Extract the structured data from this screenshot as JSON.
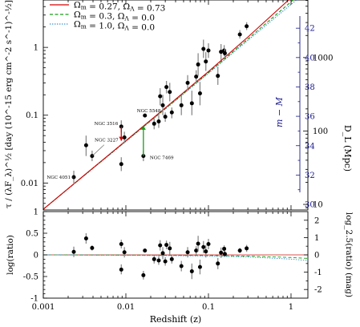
{
  "chart_data": [
    {
      "panel": "upper",
      "type": "scatter",
      "x_axis": {
        "scale": "log",
        "range": [
          0.001,
          1.6
        ],
        "tick_labels": [],
        "label": ""
      },
      "y_axis": {
        "scale": "log",
        "range": [
          0.004,
          5.0
        ],
        "label": "τ / (λF_λ)^½  [day  (10^-15 erg cm^-2 s^-1)^-½]",
        "tick_labels": [
          "0.01",
          "0.1",
          "1"
        ]
      },
      "right_axis_m_minus_M": {
        "label": "m − M",
        "color": "#1a1a8c",
        "range": [
          29.62,
          43.92
        ],
        "tick_labels": [
          "30",
          "32",
          "34",
          "36",
          "38",
          "40",
          "42"
        ]
      },
      "right_axis_DL": {
        "label": "D_L (Mpc)",
        "tick_labels": [
          "10",
          "100",
          "1000"
        ],
        "tick_values": [
          10,
          100,
          1000
        ]
      },
      "legend": {
        "position": "top-left",
        "entries": [
          {
            "label_main": "Ω",
            "label_sub1": "m",
            "label_mid": " = 0.27, Ω",
            "label_sub2": "Λ",
            "label_end": " = 0.73",
            "color": "#d40000",
            "dash": "solid"
          },
          {
            "label_main": "Ω",
            "label_sub1": "m",
            "label_mid": " = 0.3, Ω",
            "label_sub2": "Λ",
            "label_end": " = 0.0",
            "color": "#1a9a1a",
            "dash": "dashed"
          },
          {
            "label_main": "Ω",
            "label_sub1": "m",
            "label_mid": " = 1.0, Ω",
            "label_sub2": "Λ",
            "label_end": " = 0.0",
            "color": "#3a8fd0",
            "dash": "dotted"
          }
        ]
      },
      "models": [
        {
          "name": "Ω_m = 0.27, Ω_Λ = 0.73",
          "color": "#d40000",
          "x": [
            0.001,
            0.003,
            0.01,
            0.03,
            0.1,
            0.3,
            1.0,
            1.6
          ],
          "y": [
            0.0041,
            0.0125,
            0.042,
            0.128,
            0.44,
            1.42,
            5.4,
            9.3
          ]
        },
        {
          "name": "Ω_m = 0.3, Ω_Λ = 0.0",
          "color": "#1a9a1a",
          "x": [
            0.001,
            0.003,
            0.01,
            0.03,
            0.1,
            0.3,
            1.0,
            1.6
          ],
          "y": [
            0.0041,
            0.0124,
            0.0415,
            0.125,
            0.425,
            1.33,
            4.7,
            7.7
          ]
        },
        {
          "name": "Ω_m = 1.0, Ω_Λ = 0.0",
          "color": "#3a8fd0",
          "x": [
            0.001,
            0.003,
            0.01,
            0.03,
            0.1,
            0.3,
            1.0,
            1.6
          ],
          "y": [
            0.0041,
            0.0123,
            0.041,
            0.123,
            0.415,
            1.27,
            4.3,
            6.9
          ]
        }
      ],
      "points": [
        {
          "x": 0.00234,
          "y": 0.0122,
          "lo": 0.0096,
          "hi": 0.0152,
          "label": "NGC 4051"
        },
        {
          "x": 0.0033,
          "y": 0.036,
          "lo": 0.025,
          "hi": 0.05
        },
        {
          "x": 0.0039,
          "y": 0.025,
          "lo": 0.021,
          "hi": 0.03,
          "label": "NGC 3227"
        },
        {
          "x": 0.0088,
          "y": 0.019,
          "lo": 0.015,
          "hi": 0.024
        },
        {
          "x": 0.0088,
          "y": 0.068,
          "lo": 0.056,
          "hi": 0.084,
          "label": "NGC 3516"
        },
        {
          "x": 0.0096,
          "y": 0.047,
          "lo": 0.039,
          "hi": 0.057
        },
        {
          "x": 0.0163,
          "y": 0.025,
          "lo": 0.021,
          "hi": 0.03,
          "label": "NGC 7469"
        },
        {
          "x": 0.017,
          "y": 0.099,
          "lo": 0.094,
          "hi": 0.104,
          "label": "NGC 5548"
        },
        {
          "x": 0.022,
          "y": 0.075,
          "lo": 0.062,
          "hi": 0.09
        },
        {
          "x": 0.025,
          "y": 0.081,
          "lo": 0.065,
          "hi": 0.1
        },
        {
          "x": 0.026,
          "y": 0.19,
          "lo": 0.14,
          "hi": 0.25
        },
        {
          "x": 0.028,
          "y": 0.14,
          "lo": 0.1,
          "hi": 0.2
        },
        {
          "x": 0.03,
          "y": 0.095,
          "lo": 0.08,
          "hi": 0.11
        },
        {
          "x": 0.031,
          "y": 0.26,
          "lo": 0.21,
          "hi": 0.32
        },
        {
          "x": 0.034,
          "y": 0.22,
          "lo": 0.16,
          "hi": 0.3
        },
        {
          "x": 0.036,
          "y": 0.11,
          "lo": 0.09,
          "hi": 0.13
        },
        {
          "x": 0.047,
          "y": 0.14,
          "lo": 0.1,
          "hi": 0.2
        },
        {
          "x": 0.056,
          "y": 0.3,
          "lo": 0.23,
          "hi": 0.39
        },
        {
          "x": 0.063,
          "y": 0.15,
          "lo": 0.1,
          "hi": 0.23
        },
        {
          "x": 0.071,
          "y": 0.37,
          "lo": 0.3,
          "hi": 0.46
        },
        {
          "x": 0.075,
          "y": 0.56,
          "lo": 0.38,
          "hi": 0.82
        },
        {
          "x": 0.079,
          "y": 0.21,
          "lo": 0.14,
          "hi": 0.31
        },
        {
          "x": 0.087,
          "y": 0.95,
          "lo": 0.7,
          "hi": 1.3
        },
        {
          "x": 0.093,
          "y": 0.62,
          "lo": 0.45,
          "hi": 0.85
        },
        {
          "x": 0.1,
          "y": 0.9,
          "lo": 0.7,
          "hi": 1.15
        },
        {
          "x": 0.13,
          "y": 0.38,
          "lo": 0.28,
          "hi": 0.52
        },
        {
          "x": 0.142,
          "y": 0.86,
          "lo": 0.65,
          "hi": 1.12
        },
        {
          "x": 0.155,
          "y": 0.9,
          "lo": 0.75,
          "hi": 1.08
        },
        {
          "x": 0.158,
          "y": 0.82,
          "lo": 0.7,
          "hi": 0.96
        },
        {
          "x": 0.24,
          "y": 1.55,
          "lo": 1.35,
          "hi": 1.8
        },
        {
          "x": 0.29,
          "y": 2.05,
          "lo": 1.8,
          "hi": 2.35
        }
      ],
      "arrows": [
        {
          "name": "NGC 3516",
          "color": "#d40000",
          "x": 0.0088,
          "y_from": 0.068,
          "y_to": 0.042
        },
        {
          "name": "NGC 7469",
          "color": "#1a9a1a",
          "x": 0.0163,
          "y_from": 0.025,
          "y_to": 0.07
        }
      ]
    },
    {
      "panel": "lower",
      "type": "scatter",
      "x_axis": {
        "scale": "log",
        "range": [
          0.001,
          1.6
        ],
        "label": "Redshift (z)",
        "tick_labels": [
          "0.001",
          "0.01",
          "0.1",
          "1"
        ]
      },
      "y_axis": {
        "scale": "linear",
        "range": [
          -1.0,
          1.0
        ],
        "label": "log(ratio)",
        "tick_labels": [
          "-1",
          "-0.5",
          "0",
          "0.5",
          "1"
        ]
      },
      "right_axis": {
        "label": "log_2.5(ratio) (mag)",
        "tick_labels": [
          "-2",
          "-1",
          "0",
          "1",
          "2"
        ],
        "tick_values": [
          -2,
          -1,
          0,
          1,
          2
        ]
      },
      "points": [
        {
          "x": 0.00234,
          "y": 0.07,
          "lo": -0.05,
          "hi": 0.19
        },
        {
          "x": 0.0033,
          "y": 0.38,
          "lo": 0.26,
          "hi": 0.5
        },
        {
          "x": 0.0039,
          "y": 0.16,
          "lo": 0.1,
          "hi": 0.22
        },
        {
          "x": 0.0088,
          "y": -0.34,
          "lo": -0.45,
          "hi": -0.22
        },
        {
          "x": 0.0088,
          "y": 0.25,
          "lo": 0.15,
          "hi": 0.35
        },
        {
          "x": 0.0096,
          "y": 0.06,
          "lo": -0.06,
          "hi": 0.18
        },
        {
          "x": 0.0163,
          "y": -0.47,
          "lo": -0.57,
          "hi": -0.37
        },
        {
          "x": 0.017,
          "y": 0.1,
          "lo": 0.06,
          "hi": 0.14
        },
        {
          "x": 0.022,
          "y": -0.1,
          "lo": -0.2,
          "hi": 0.0
        },
        {
          "x": 0.025,
          "y": -0.13,
          "lo": -0.23,
          "hi": -0.03
        },
        {
          "x": 0.026,
          "y": 0.22,
          "lo": 0.1,
          "hi": 0.34
        },
        {
          "x": 0.028,
          "y": 0.04,
          "lo": -0.1,
          "hi": 0.18
        },
        {
          "x": 0.03,
          "y": -0.15,
          "lo": -0.25,
          "hi": -0.05
        },
        {
          "x": 0.031,
          "y": 0.23,
          "lo": 0.13,
          "hi": 0.33
        },
        {
          "x": 0.034,
          "y": 0.15,
          "lo": 0.0,
          "hi": 0.3
        },
        {
          "x": 0.036,
          "y": -0.1,
          "lo": -0.2,
          "hi": 0.0
        },
        {
          "x": 0.047,
          "y": -0.26,
          "lo": -0.38,
          "hi": -0.14
        },
        {
          "x": 0.056,
          "y": 0.06,
          "lo": -0.06,
          "hi": 0.18
        },
        {
          "x": 0.063,
          "y": -0.38,
          "lo": -0.56,
          "hi": -0.2
        },
        {
          "x": 0.071,
          "y": 0.1,
          "lo": 0.0,
          "hi": 0.2
        },
        {
          "x": 0.075,
          "y": 0.26,
          "lo": 0.08,
          "hi": 0.44
        },
        {
          "x": 0.079,
          "y": -0.28,
          "lo": -0.45,
          "hi": -0.11
        },
        {
          "x": 0.087,
          "y": 0.18,
          "lo": 0.04,
          "hi": 0.32
        },
        {
          "x": 0.093,
          "y": 0.08,
          "lo": -0.06,
          "hi": 0.22
        },
        {
          "x": 0.1,
          "y": 0.25,
          "lo": 0.13,
          "hi": 0.37
        },
        {
          "x": 0.13,
          "y": -0.2,
          "lo": -0.33,
          "hi": -0.07
        },
        {
          "x": 0.142,
          "y": 0.05,
          "lo": -0.07,
          "hi": 0.17
        },
        {
          "x": 0.155,
          "y": 0.14,
          "lo": 0.06,
          "hi": 0.22
        },
        {
          "x": 0.158,
          "y": 0.02,
          "lo": -0.05,
          "hi": 0.09
        },
        {
          "x": 0.24,
          "y": 0.1,
          "lo": 0.04,
          "hi": 0.16
        },
        {
          "x": 0.29,
          "y": 0.15,
          "lo": 0.07,
          "hi": 0.23
        }
      ]
    }
  ]
}
